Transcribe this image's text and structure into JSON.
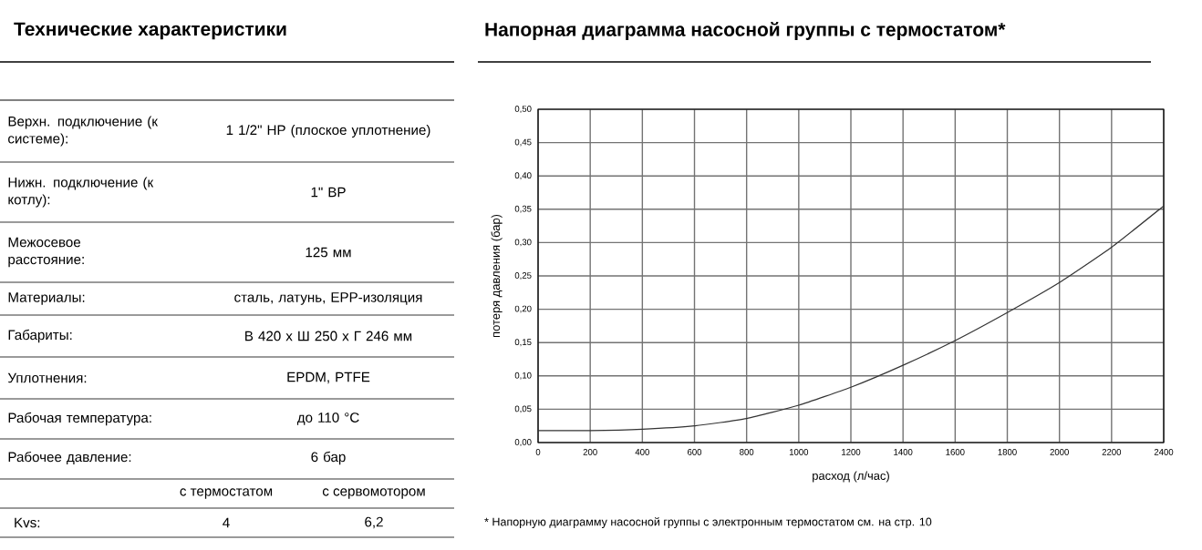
{
  "chart_data": [
    {
      "type": "other",
      "title": "Технические характеристики",
      "annotations": [
        "Верхн. подключение (к системе):",
        "1 1/2\" НР (плоское уплотнение)",
        "Нижн. подключение (к котлу):",
        "1\" ВР",
        "Межосевое расстояние:",
        "125 мм",
        "Материалы:",
        "сталь, латунь, ЕРР-изоляция",
        "Габариты:",
        "В 420 х Ш 250 х Г 246 мм",
        "Уплотнения:",
        "EPDM, PTFE",
        "Рабочая температура:",
        "до 110 °С",
        "Рабочее давление:",
        "6 бар",
        "с термостатом",
        "с сервомотором",
        "Kvs:",
        "4",
        "6,2"
      ]
    },
    {
      "type": "line",
      "title": "Напорная диаграмма насосной группы с термостатом*",
      "xlabel": "расход (л/час)",
      "ylabel": "потеря давления (бар)",
      "x": [
        0,
        200,
        400,
        600,
        800,
        1000,
        1200,
        1400,
        1600,
        1800,
        2000,
        2200,
        2400
      ],
      "series": [
        {
          "color": "#333333",
          "values": [
            0.018,
            0.018,
            0.02,
            0.025,
            0.036,
            0.056,
            0.083,
            0.116,
            0.153,
            0.195,
            0.24,
            0.293,
            0.355
          ]
        }
      ],
      "xlim": [
        0,
        2400
      ],
      "ylim": [
        0,
        0.5
      ],
      "xticks": [
        0,
        200,
        400,
        600,
        800,
        1000,
        1200,
        1400,
        1600,
        1800,
        2000,
        2200,
        2400
      ],
      "yticks": [
        {
          "value": 0,
          "label": "0,00"
        },
        {
          "value": 0.05,
          "label": "0,05"
        },
        {
          "value": 0.1,
          "label": "0,10"
        },
        {
          "value": 0.15,
          "label": "0,15"
        },
        {
          "value": 0.2,
          "label": "0,20"
        },
        {
          "value": 0.25,
          "label": "0,25"
        },
        {
          "value": 0.3,
          "label": "0,30"
        },
        {
          "value": 0.35,
          "label": "0,35"
        },
        {
          "value": 0.4,
          "label": "0,40"
        },
        {
          "value": 0.45,
          "label": "0,45"
        },
        {
          "value": 0.5,
          "label": "0,50"
        }
      ],
      "grid": true,
      "marker": "none",
      "line_style": "solid",
      "annotations": [
        "* Напорную диаграмму насосной группы с электронным термостатом см. на стр. 10"
      ]
    }
  ]
}
